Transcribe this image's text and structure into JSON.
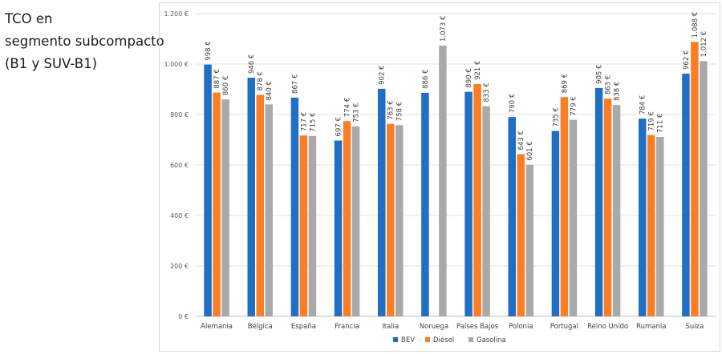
{
  "side_title": [
    "TCO en",
    "segmento subcompacto",
    "(B1 y SUV-B1)"
  ],
  "colors": {
    "BEV": "#1f6fc5",
    "Diésel": "#fb7d24",
    "Gasolina": "#a9a9a9",
    "grid": "#e3e3e3",
    "axis": "#bfbfbf"
  },
  "chart_data": {
    "type": "bar",
    "title": "TCO en segmento subcompacto (B1 y SUV-B1)",
    "xlabel": "",
    "ylabel": "",
    "ylim": [
      0,
      1200
    ],
    "yticks": [
      0,
      200,
      400,
      600,
      800,
      1000,
      1200
    ],
    "ytick_labels": [
      "0 €",
      "200 €",
      "400 €",
      "600 €",
      "800 €",
      "1.000 €",
      "1.200 €"
    ],
    "legend_position": "bottom",
    "categories": [
      "Alemania",
      "Bélgica",
      "España",
      "Francia",
      "Italia",
      "Noruega",
      "Países Bajos",
      "Polonia",
      "Portugal",
      "Reino Unido",
      "Rumanía",
      "Suiza"
    ],
    "series": [
      {
        "name": "BEV",
        "values": [
          998,
          946,
          867,
          697,
          902,
          886,
          890,
          790,
          735,
          905,
          784,
          962
        ],
        "labels": [
          "998 €",
          "946 €",
          "867 €",
          "697 €",
          "902 €",
          "886 €",
          "890 €",
          "790 €",
          "735 €",
          "905 €",
          "784 €",
          "962 €"
        ]
      },
      {
        "name": "Diésel",
        "values": [
          887,
          878,
          717,
          774,
          763,
          null,
          921,
          643,
          869,
          863,
          719,
          1088
        ],
        "labels": [
          "887 €",
          "878 €",
          "717 €",
          "774 €",
          "763 €",
          "",
          "921 €",
          "643 €",
          "869 €",
          "863 €",
          "719 €",
          "1.088 €"
        ]
      },
      {
        "name": "Gasolina",
        "values": [
          860,
          840,
          715,
          753,
          758,
          1073,
          833,
          601,
          779,
          838,
          711,
          1012
        ],
        "labels": [
          "860 €",
          "840 €",
          "715 €",
          "753 €",
          "758 €",
          "1.073 €",
          "833 €",
          "601 €",
          "779 €",
          "838 €",
          "711 €",
          "1.012 €"
        ]
      }
    ]
  }
}
